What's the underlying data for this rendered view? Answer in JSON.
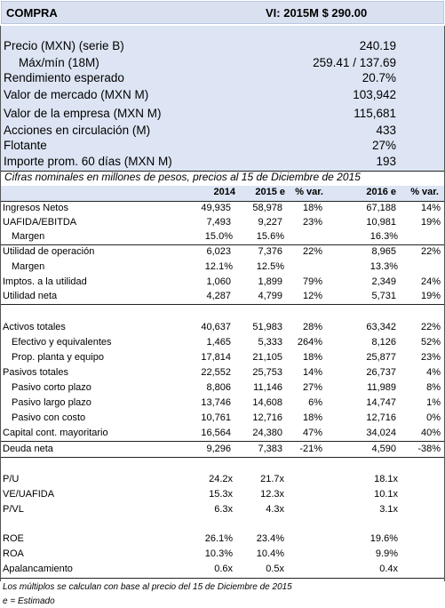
{
  "header": {
    "title": "COMPRA",
    "target": "VI: 2015M   $ 290.00"
  },
  "summary": [
    {
      "label": "Precio (MXN) (serie B)",
      "value": "240.19"
    },
    {
      "label": "Máx/mín (18M)",
      "value": "259.41 / 137.69"
    },
    {
      "label": "Rendimiento esperado",
      "value": "20.7%"
    },
    {
      "label": "Valor de mercado (MXN M)",
      "value": "103,942"
    },
    {
      "label": "Valor de la empresa (MXN M)",
      "value": "115,681"
    },
    {
      "label": "Acciones en circulación (M)",
      "value": "433"
    },
    {
      "label": "Flotante",
      "value": "27%"
    },
    {
      "label": "Importe prom. 60 días (MXN M)",
      "value": "193"
    }
  ],
  "note": "Cifras nominales en millones de pesos, precios al 15 de Diciembre de 2015",
  "table": {
    "columns": [
      "2014",
      "2015 e",
      "% var.",
      "2016 e",
      "% var."
    ],
    "rows": [
      {
        "label": "Ingresos Netos",
        "v2014": "49,935",
        "v2015": "58,978",
        "var1": "18%",
        "v2016": "67,188",
        "var2": "14%"
      },
      {
        "label": "UAFIDA/EBITDA",
        "v2014": "7,493",
        "v2015": "9,227",
        "var1": "23%",
        "v2016": "10,981",
        "var2": "19%"
      },
      {
        "label": "Margen",
        "v2014": "15.0%",
        "v2015": "15.6%",
        "v2016": "16.3%"
      },
      {
        "label": "Utilidad de operación",
        "v2014": "6,023",
        "v2015": "7,376",
        "var1": "22%",
        "v2016": "8,965",
        "var2": "22%"
      },
      {
        "label": "Margen",
        "v2014": "12.1%",
        "v2015": "12.5%",
        "v2016": "13.3%"
      },
      {
        "label": "Imptos. a la utilidad",
        "v2014": "1,060",
        "v2015": "1,899",
        "var1": "79%",
        "v2016": "2,349",
        "var2": "24%"
      },
      {
        "label": "Utilidad neta",
        "v2014": "4,287",
        "v2015": "4,799",
        "var1": "12%",
        "v2016": "5,731",
        "var2": "19%"
      },
      {
        "label": "Activos totales",
        "v2014": "40,637",
        "v2015": "51,983",
        "var1": "28%",
        "v2016": "63,342",
        "var2": "22%"
      },
      {
        "label": "Efectivo y equivalentes",
        "v2014": "1,465",
        "v2015": "5,333",
        "var1": "264%",
        "v2016": "8,126",
        "var2": "52%"
      },
      {
        "label": "Prop. planta y equipo",
        "v2014": "17,814",
        "v2015": "21,105",
        "var1": "18%",
        "v2016": "25,877",
        "var2": "23%"
      },
      {
        "label": "Pasivos totales",
        "v2014": "22,552",
        "v2015": "25,753",
        "var1": "14%",
        "v2016": "26,737",
        "var2": "4%"
      },
      {
        "label": "Pasivo corto plazo",
        "v2014": "8,806",
        "v2015": "11,146",
        "var1": "27%",
        "v2016": "11,989",
        "var2": "8%"
      },
      {
        "label": "Pasivo largo plazo",
        "v2014": "13,746",
        "v2015": "14,608",
        "var1": "6%",
        "v2016": "14,747",
        "var2": "1%"
      },
      {
        "label": "Pasivo con costo",
        "v2014": "10,761",
        "v2015": "12,716",
        "var1": "18%",
        "v2016": "12,716",
        "var2": "0%"
      },
      {
        "label": "Capital cont. mayoritario",
        "v2014": "16,564",
        "v2015": "24,380",
        "var1": "47%",
        "v2016": "34,024",
        "var2": "40%"
      },
      {
        "label": "Deuda neta",
        "v2014": "9,296",
        "v2015": "7,383",
        "var1": "-21%",
        "v2016": "4,590",
        "var2": "-38%"
      }
    ],
    "multiples": [
      {
        "label": "P/U",
        "v2014": "24.2x",
        "v2015": "21.7x",
        "v2016": "18.1x"
      },
      {
        "label": "VE/UAFIDA",
        "v2014": "15.3x",
        "v2015": "12.3x",
        "v2016": "10.1x"
      },
      {
        "label": "P/VL",
        "v2014": "6.3x",
        "v2015": "4.3x",
        "v2016": "3.1x"
      }
    ],
    "ratios": [
      {
        "label": "ROE",
        "v2014": "26.1%",
        "v2015": "23.4%",
        "v2016": "19.6%"
      },
      {
        "label": "ROA",
        "v2014": "10.3%",
        "v2015": "10.4%",
        "v2016": "9.9%"
      },
      {
        "label": "Apalancamiento",
        "v2014": "0.6x",
        "v2015": "0.5x",
        "v2016": "0.4x"
      }
    ]
  },
  "footnotes": [
    "Los múltiplos se calculan con base al precio del 15 de Diciembre de 2015",
    "e = Estimado"
  ],
  "colors": {
    "header_bg": "#d9e1f1",
    "panel_bg": "#dde5f4"
  }
}
